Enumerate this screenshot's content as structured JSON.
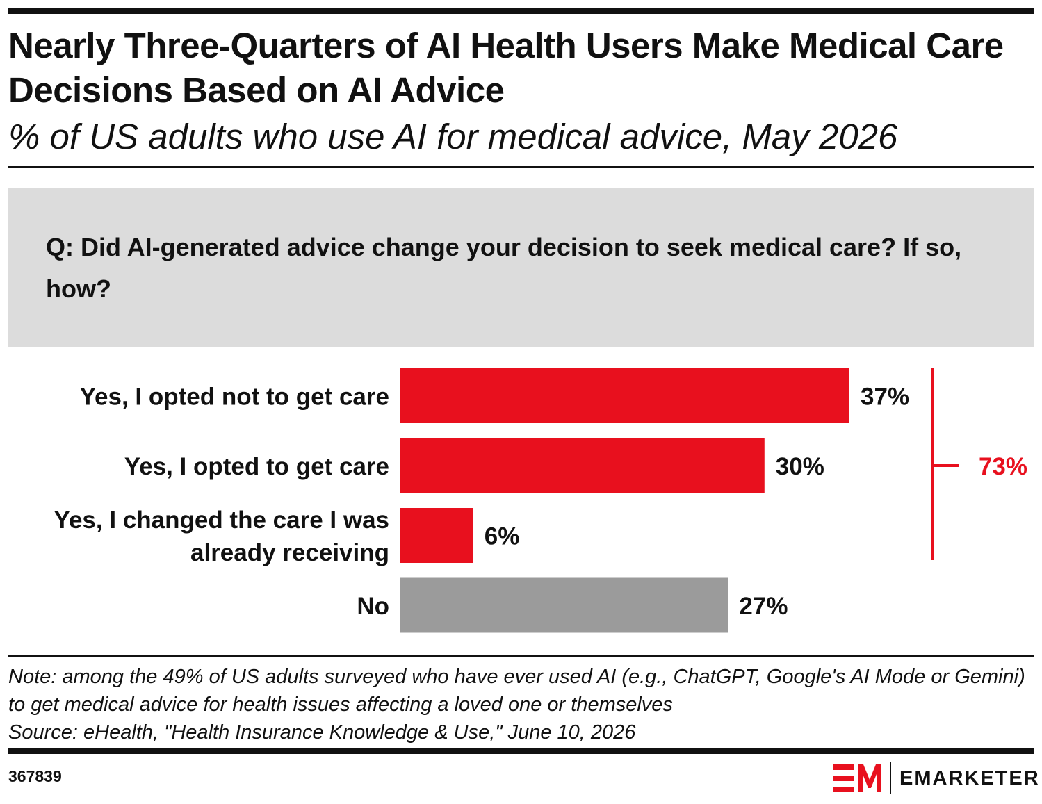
{
  "colors": {
    "accent": "#e8101e",
    "neutral": "#9b9b9b",
    "text": "#111111",
    "panel": "#dcdcdc"
  },
  "header": {
    "title": "Nearly Three-Quarters of AI Health Users Make Medical Care Decisions Based on AI Advice",
    "subtitle": "% of US adults who use AI for medical advice, May 2026"
  },
  "question": "Q: Did AI-generated advice change your decision to seek medical care? If so, how?",
  "chart_data": {
    "type": "bar",
    "orientation": "horizontal",
    "categories": [
      "Yes, I opted not to get care",
      "Yes, I opted to get care",
      "Yes, I changed the care I was already receiving",
      "No"
    ],
    "category_lines": [
      [
        "Yes, I opted not to get care"
      ],
      [
        "Yes, I opted to get care"
      ],
      [
        "Yes, I changed the care I was",
        "already receiving"
      ],
      [
        "No"
      ]
    ],
    "values": [
      37,
      30,
      6,
      27
    ],
    "value_labels": [
      "37%",
      "30%",
      "6%",
      "27%"
    ],
    "bar_colors": [
      "#e8101e",
      "#e8101e",
      "#e8101e",
      "#9b9b9b"
    ],
    "bracket": {
      "spans_categories": [
        0,
        1,
        2
      ],
      "value": 73,
      "label": "73%"
    },
    "xlim": [
      0,
      37
    ],
    "grid": false,
    "legend": "none"
  },
  "footer": {
    "note": "Note: among the 49% of US adults surveyed who have ever used AI (e.g., ChatGPT, Google's AI Mode or Gemini) to get medical advice for health issues affecting a loved one or themselves",
    "source": "Source: eHealth, \"Health Insurance Knowledge & Use,\" June 10, 2026",
    "chart_id": "367839",
    "brand": "EMARKETER",
    "brand_logo_icon": "em-logo-icon"
  }
}
